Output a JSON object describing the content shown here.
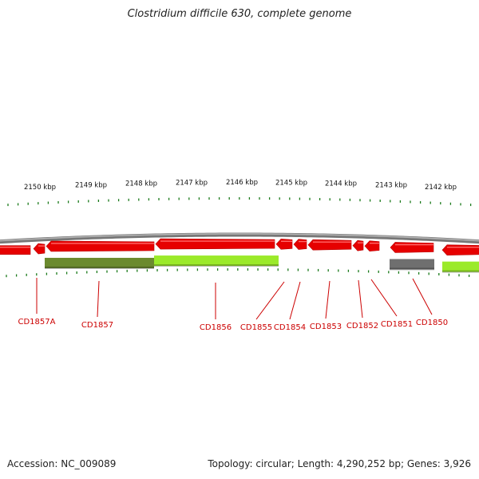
{
  "title": "Clostridium difficile 630, complete genome",
  "footer": {
    "accession": "Accession: NC_009089",
    "summary": "Topology: circular; Length: 4,290,252 bp; Genes: 3,926"
  },
  "colors": {
    "gene": "#e60000",
    "gene_dark": "#b80000",
    "backbone": "#8a8a8a",
    "tick": "#1a7a1a",
    "feature_dark_green": "#6b8a2e",
    "feature_light_green": "#9bea2a",
    "feature_gray": "#6f6f6f",
    "label": "#cc0000"
  },
  "scale_labels": [
    "2150 kbp",
    "2149 kbp",
    "2148 kbp",
    "2147 kbp",
    "2146 kbp",
    "2145 kbp",
    "2144 kbp",
    "2143 kbp",
    "2142 kbp"
  ],
  "gene_labels": [
    "CD1857A",
    "CD1857",
    "CD1856",
    "CD1855",
    "CD1854",
    "CD1853",
    "CD1852",
    "CD1851",
    "CD1850"
  ]
}
